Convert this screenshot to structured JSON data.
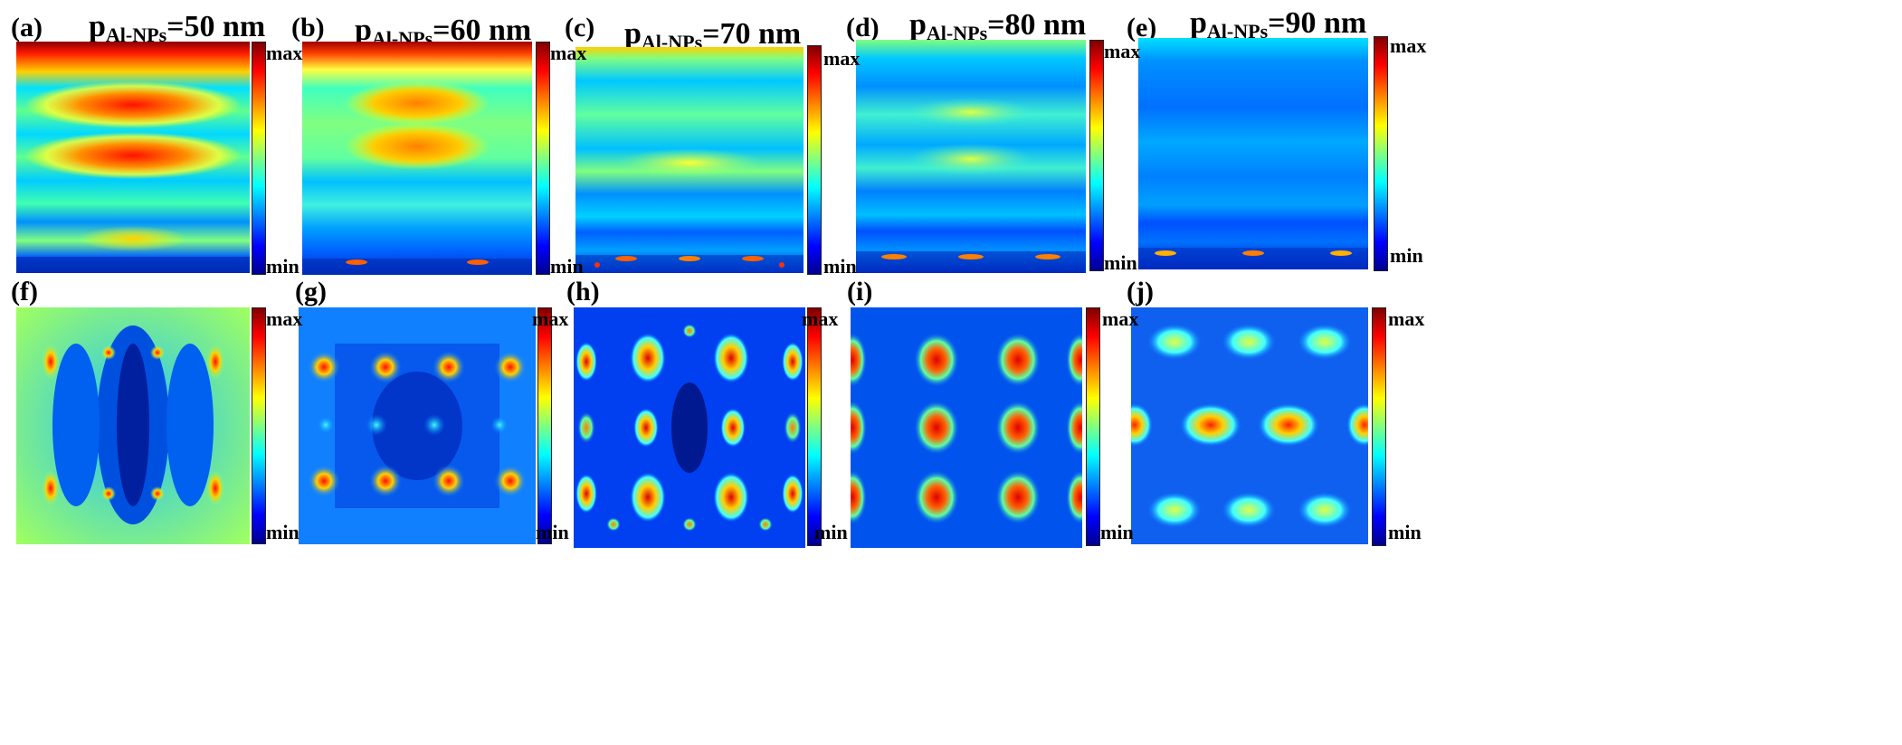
{
  "figure": {
    "colorbar": {
      "max_label": "max",
      "min_label": "min"
    },
    "colormap": [
      "#00008f",
      "#0000ff",
      "#0080ff",
      "#00ffff",
      "#80ff80",
      "#ffff00",
      "#ff8000",
      "#ff0000",
      "#800000"
    ],
    "top_row": [
      {
        "label": "(a)",
        "title_main": "p",
        "title_sub": "Al-NPs",
        "title_rest": "=50 nm"
      },
      {
        "label": "(b)",
        "title_main": "p",
        "title_sub": "Al-NPs",
        "title_rest": "=60 nm"
      },
      {
        "label": "(c)",
        "title_main": "p",
        "title_sub": "Al-NPs",
        "title_rest": "=70 nm"
      },
      {
        "label": "(d)",
        "title_main": "p",
        "title_sub": "Al-NPs",
        "title_rest": "=80 nm"
      },
      {
        "label": "(e)",
        "title_main": "p",
        "title_sub": "Al-NPs",
        "title_rest": "=90 nm"
      }
    ],
    "bottom_row": [
      {
        "label": "(f)"
      },
      {
        "label": "(g)"
      },
      {
        "label": "(h)"
      },
      {
        "label": "(i)"
      },
      {
        "label": "(j)"
      }
    ]
  }
}
